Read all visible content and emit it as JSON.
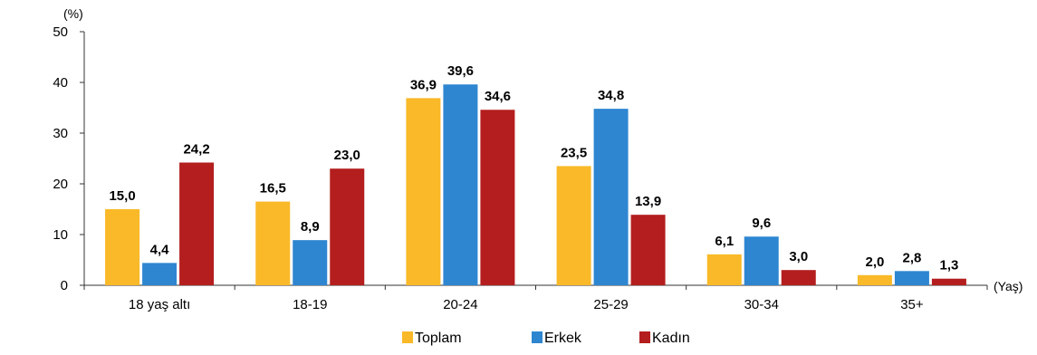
{
  "chart_data": {
    "type": "bar",
    "y_unit_label": "(%)",
    "x_unit_label": "(Yaş)",
    "ylim": [
      0,
      50
    ],
    "yticks": [
      0,
      10,
      20,
      30,
      40,
      50
    ],
    "grid": false,
    "legend_position": "bottom",
    "categories": [
      "18 yaş altı",
      "18-19",
      "20-24",
      "25-29",
      "30-34",
      "35+"
    ],
    "series": [
      {
        "name": "Toplam",
        "color": "#F9B928",
        "values": [
          15.0,
          16.5,
          36.9,
          23.5,
          6.1,
          2.0
        ],
        "labels": [
          "15,0",
          "16,5",
          "36,9",
          "23,5",
          "6,1",
          "2,0"
        ]
      },
      {
        "name": "Erkek",
        "color": "#2E86D1",
        "values": [
          4.4,
          8.9,
          39.6,
          34.8,
          9.6,
          2.8
        ],
        "labels": [
          "4,4",
          "8,9",
          "39,6",
          "34,8",
          "9,6",
          "2,8"
        ]
      },
      {
        "name": "Kadın",
        "color": "#B41E1E",
        "values": [
          24.2,
          23.0,
          34.6,
          13.9,
          3.0,
          1.3
        ],
        "labels": [
          "24,2",
          "23,0",
          "34,6",
          "13,9",
          "3,0",
          "1,3"
        ]
      }
    ]
  }
}
